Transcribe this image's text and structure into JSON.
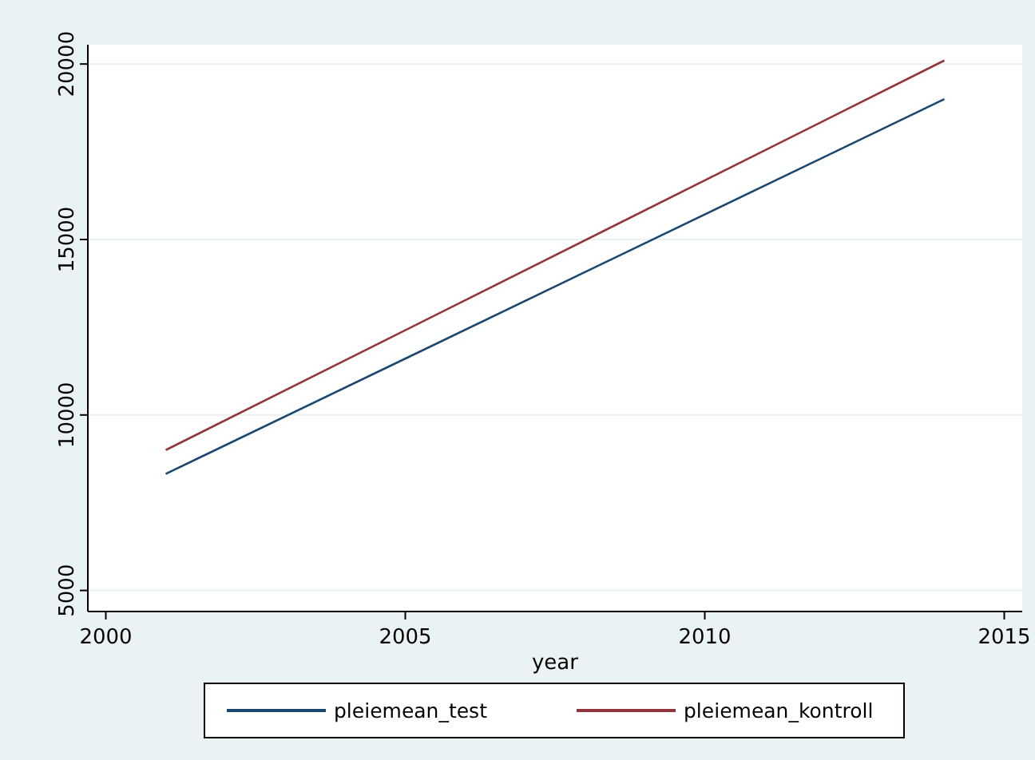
{
  "chart_data": {
    "type": "line",
    "xlabel": "year",
    "x": [
      2001,
      2014
    ],
    "series": [
      {
        "name": "pleiemean_test",
        "color": "#1a476f",
        "values": [
          8320,
          19000
        ]
      },
      {
        "name": "pleiemean_kontroll",
        "color": "#90353b",
        "values": [
          9000,
          20100
        ]
      }
    ],
    "xlim": [
      1999.7,
      2015.3
    ],
    "xticks": [
      2000,
      2005,
      2010,
      2015
    ],
    "ylim": [
      4400,
      20550
    ],
    "yticks": [
      5000,
      10000,
      15000,
      20000
    ],
    "grid": "y",
    "legend": "bottom",
    "marker": "none",
    "line_style": "solid"
  }
}
